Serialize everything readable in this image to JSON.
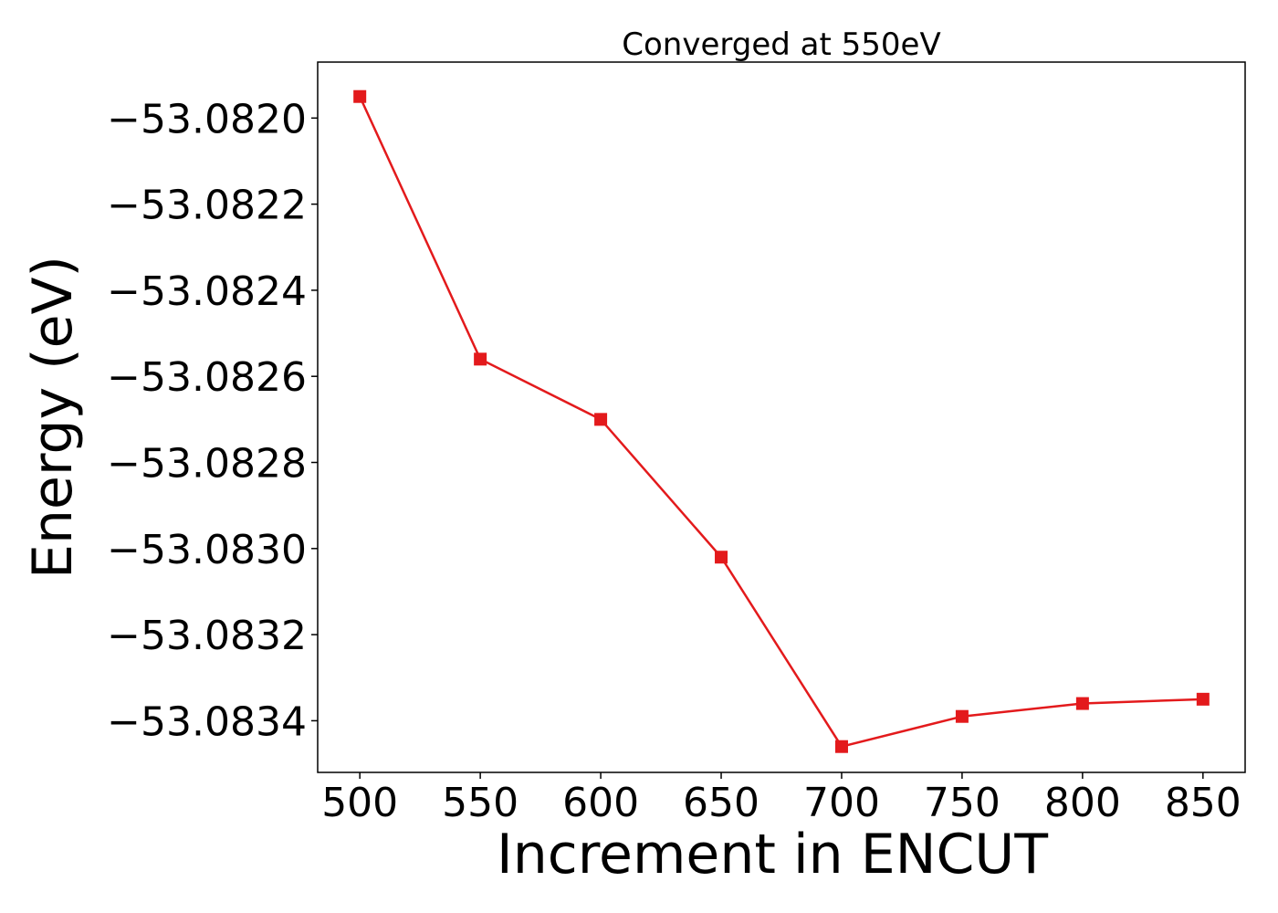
{
  "chart_data": {
    "type": "line",
    "title": "Converged at 550eV",
    "xlabel": "Increment in ENCUT",
    "ylabel": "Energy (eV)",
    "x": [
      500,
      550,
      600,
      650,
      700,
      750,
      800,
      850
    ],
    "series": [
      {
        "values": [
          -53.08195,
          -53.08256,
          -53.0827,
          -53.08302,
          -53.08346,
          -53.08339,
          -53.08336,
          -53.08335
        ],
        "color": "#e31a1c",
        "marker": "square"
      }
    ],
    "xticks": [
      500,
      550,
      600,
      650,
      700,
      750,
      800,
      850
    ],
    "xtick_labels": [
      "500",
      "550",
      "600",
      "650",
      "700",
      "750",
      "800",
      "850"
    ],
    "yticks": [
      -53.082,
      -53.0822,
      -53.0824,
      -53.0826,
      -53.0828,
      -53.083,
      -53.0832,
      -53.0834
    ],
    "ytick_labels": [
      "−53.0820",
      "−53.0822",
      "−53.0824",
      "−53.0826",
      "−53.0828",
      "−53.0830",
      "−53.0832",
      "−53.0834"
    ],
    "xlim": [
      482.5,
      867.5
    ],
    "ylim": [
      -53.08352,
      -53.08187
    ],
    "grid": false,
    "legend": "none"
  }
}
